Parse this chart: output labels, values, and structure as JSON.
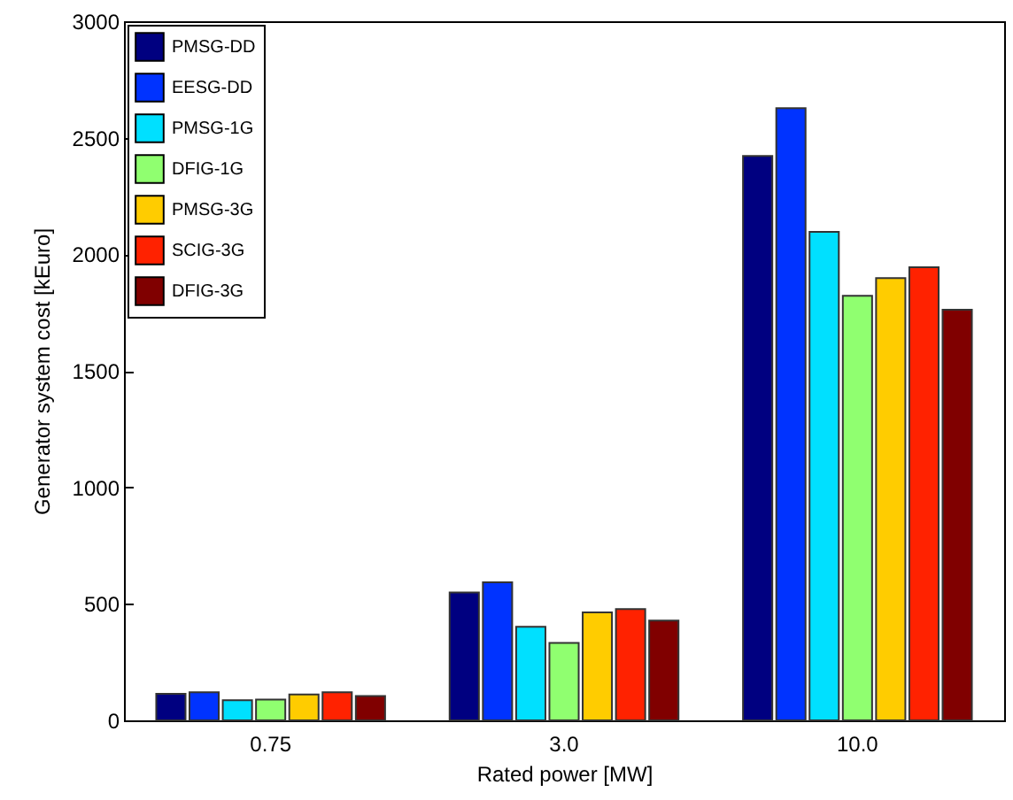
{
  "chart_data": {
    "type": "bar",
    "xlabel": "Rated power [MW]",
    "ylabel": "Generator system cost [kEuro]",
    "categories": [
      "0.75",
      "3.0",
      "10.0"
    ],
    "series": [
      {
        "name": "PMSG-DD",
        "color": "#000080",
        "values": [
          114,
          549,
          2422
        ]
      },
      {
        "name": "EESG-DD",
        "color": "#0033ff",
        "values": [
          121,
          592,
          2627
        ]
      },
      {
        "name": "PMSG-1G",
        "color": "#00e0ff",
        "values": [
          86,
          402,
          2096
        ]
      },
      {
        "name": "DFIG-1G",
        "color": "#90ff70",
        "values": [
          89,
          332,
          1822
        ]
      },
      {
        "name": "PMSG-3G",
        "color": "#ffcc00",
        "values": [
          111,
          463,
          1898
        ]
      },
      {
        "name": "SCIG-3G",
        "color": "#ff2200",
        "values": [
          121,
          478,
          1944
        ]
      },
      {
        "name": "DFIG-3G",
        "color": "#800000",
        "values": [
          104,
          428,
          1762
        ]
      }
    ],
    "ylim": [
      0,
      3000
    ],
    "yticks": [
      0,
      500,
      1000,
      1500,
      2000,
      2500,
      3000
    ],
    "grid": false,
    "legend": "top left"
  }
}
